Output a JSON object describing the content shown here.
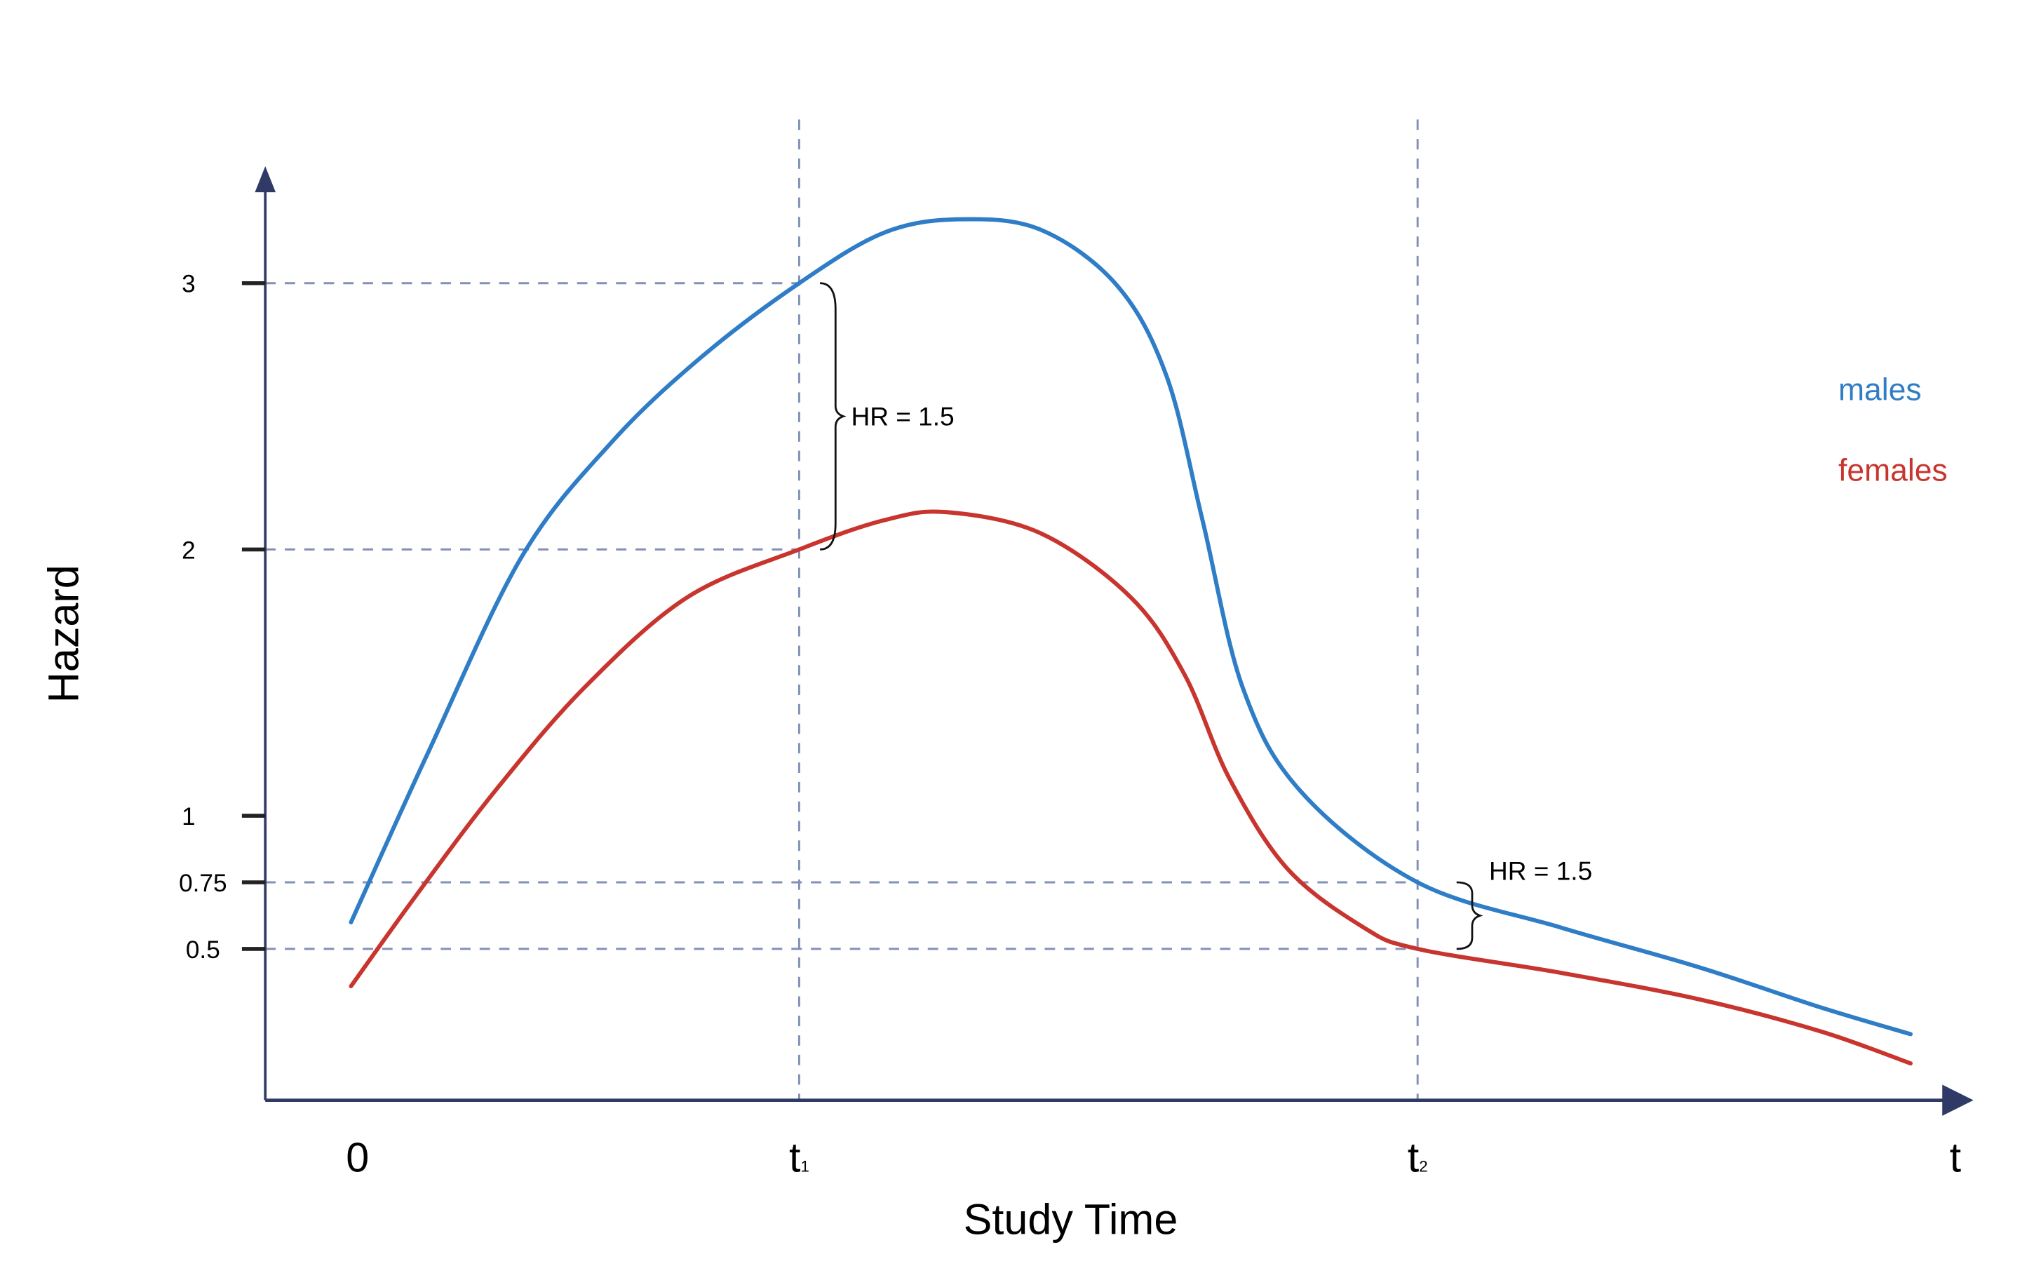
{
  "chart_data": {
    "type": "line",
    "title": "",
    "xlabel": "Study Time",
    "ylabel": "Hazard",
    "x_ticks": [
      {
        "value": 0,
        "label": "0",
        "sub": ""
      },
      {
        "value": 1,
        "label": "t",
        "sub": "1"
      },
      {
        "value": 2.38,
        "label": "t",
        "sub": "2"
      },
      {
        "value": 3.58,
        "label": "t",
        "sub": ""
      }
    ],
    "y_ticks": [
      {
        "value": 3,
        "label": "3"
      },
      {
        "value": 2,
        "label": "2"
      },
      {
        "value": 1,
        "label": "1"
      },
      {
        "value": 0.75,
        "label": "0.75"
      },
      {
        "value": 0.5,
        "label": "0.5"
      }
    ],
    "xlim": [
      0,
      3.58
    ],
    "ylim": [
      0,
      3.4
    ],
    "grid": false,
    "reference_lines": {
      "vertical": [
        1,
        2.38
      ],
      "horizontal": [
        3,
        2,
        0.75,
        0.5
      ]
    },
    "legend": {
      "placement": "right"
    },
    "series": [
      {
        "name": "males",
        "color": "#2e7dc6",
        "x": [
          0,
          0.17,
          0.38,
          0.58,
          0.78,
          1,
          1.19,
          1.36,
          1.54,
          1.71,
          1.82,
          1.9,
          1.99,
          2.12,
          2.38,
          2.7,
          3.01,
          3.28,
          3.48
        ],
        "y": [
          0.6,
          1.23,
          1.97,
          2.4,
          2.72,
          3.0,
          3.19,
          3.24,
          3.2,
          2.99,
          2.65,
          2.11,
          1.48,
          1.09,
          0.75,
          0.58,
          0.43,
          0.28,
          0.18
        ]
      },
      {
        "name": "females",
        "color": "#c8352e",
        "x": [
          0,
          0.145,
          0.32,
          0.52,
          0.75,
          1,
          1.19,
          1.33,
          1.54,
          1.74,
          1.86,
          1.96,
          2.09,
          2.26,
          2.38,
          2.7,
          3.01,
          3.28,
          3.48
        ],
        "y": [
          0.36,
          0.7,
          1.09,
          1.48,
          1.82,
          2.0,
          2.11,
          2.14,
          2.06,
          1.82,
          1.53,
          1.14,
          0.8,
          0.58,
          0.5,
          0.41,
          0.31,
          0.19,
          0.07
        ]
      }
    ],
    "annotations": [
      {
        "text": "HR = 1.5",
        "x": 1,
        "y_from": 2,
        "y_to": 3
      },
      {
        "text": "HR = 1.5",
        "x": 2.38,
        "y_from": 0.5,
        "y_to": 0.75
      }
    ]
  }
}
